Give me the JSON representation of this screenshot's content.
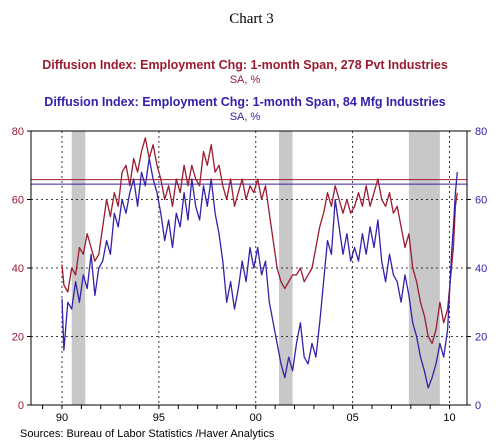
{
  "chart_title": "Chart 3",
  "source": "Sources:  Bureau of Labor Statistics /Haver Analytics",
  "chart_data": {
    "type": "line",
    "series": [
      {
        "name": "Diffusion Index: Employment Chg: 1-month Span, 278 Pvt Industries",
        "subtitle": "SA, %",
        "color": "#9b1b30",
        "reference_level": 65.8,
        "points": [
          [
            1990.0,
            41
          ],
          [
            1990.1,
            35
          ],
          [
            1990.3,
            33
          ],
          [
            1990.5,
            40
          ],
          [
            1990.7,
            38
          ],
          [
            1990.9,
            46
          ],
          [
            1991.1,
            44
          ],
          [
            1991.3,
            50
          ],
          [
            1991.5,
            46
          ],
          [
            1991.7,
            42
          ],
          [
            1991.9,
            44
          ],
          [
            1992.1,
            52
          ],
          [
            1992.3,
            60
          ],
          [
            1992.5,
            55
          ],
          [
            1992.7,
            62
          ],
          [
            1992.9,
            58
          ],
          [
            1993.1,
            68
          ],
          [
            1993.3,
            70
          ],
          [
            1993.5,
            64
          ],
          [
            1993.7,
            72
          ],
          [
            1993.9,
            68
          ],
          [
            1994.1,
            74
          ],
          [
            1994.3,
            78
          ],
          [
            1994.5,
            72
          ],
          [
            1994.7,
            76
          ],
          [
            1994.9,
            70
          ],
          [
            1995.1,
            66
          ],
          [
            1995.3,
            60
          ],
          [
            1995.5,
            64
          ],
          [
            1995.7,
            58
          ],
          [
            1995.9,
            66
          ],
          [
            1996.1,
            62
          ],
          [
            1996.3,
            70
          ],
          [
            1996.5,
            64
          ],
          [
            1996.7,
            70
          ],
          [
            1996.9,
            66
          ],
          [
            1997.1,
            64
          ],
          [
            1997.3,
            74
          ],
          [
            1997.5,
            70
          ],
          [
            1997.7,
            76
          ],
          [
            1997.9,
            68
          ],
          [
            1998.1,
            70
          ],
          [
            1998.3,
            64
          ],
          [
            1998.5,
            60
          ],
          [
            1998.7,
            66
          ],
          [
            1998.9,
            58
          ],
          [
            1999.1,
            62
          ],
          [
            1999.3,
            66
          ],
          [
            1999.5,
            60
          ],
          [
            1999.7,
            64
          ],
          [
            1999.9,
            62
          ],
          [
            2000.1,
            66
          ],
          [
            2000.3,
            60
          ],
          [
            2000.5,
            64
          ],
          [
            2000.7,
            56
          ],
          [
            2000.9,
            48
          ],
          [
            2001.1,
            40
          ],
          [
            2001.3,
            36
          ],
          [
            2001.5,
            34
          ],
          [
            2001.7,
            36
          ],
          [
            2001.9,
            38
          ],
          [
            2002.1,
            38
          ],
          [
            2002.3,
            40
          ],
          [
            2002.5,
            36
          ],
          [
            2002.7,
            38
          ],
          [
            2002.9,
            40
          ],
          [
            2003.1,
            46
          ],
          [
            2003.3,
            52
          ],
          [
            2003.5,
            56
          ],
          [
            2003.7,
            62
          ],
          [
            2003.9,
            58
          ],
          [
            2004.1,
            64
          ],
          [
            2004.3,
            60
          ],
          [
            2004.5,
            56
          ],
          [
            2004.7,
            60
          ],
          [
            2004.9,
            56
          ],
          [
            2005.1,
            58
          ],
          [
            2005.3,
            62
          ],
          [
            2005.5,
            58
          ],
          [
            2005.7,
            64
          ],
          [
            2005.9,
            58
          ],
          [
            2006.1,
            62
          ],
          [
            2006.3,
            66
          ],
          [
            2006.5,
            60
          ],
          [
            2006.7,
            58
          ],
          [
            2006.9,
            62
          ],
          [
            2007.1,
            56
          ],
          [
            2007.3,
            58
          ],
          [
            2007.5,
            52
          ],
          [
            2007.7,
            46
          ],
          [
            2007.9,
            50
          ],
          [
            2008.1,
            40
          ],
          [
            2008.3,
            36
          ],
          [
            2008.5,
            30
          ],
          [
            2008.7,
            26
          ],
          [
            2008.9,
            20
          ],
          [
            2009.1,
            18
          ],
          [
            2009.3,
            22
          ],
          [
            2009.5,
            30
          ],
          [
            2009.7,
            24
          ],
          [
            2009.9,
            28
          ],
          [
            2010.1,
            40
          ],
          [
            2010.2,
            46
          ],
          [
            2010.3,
            58
          ],
          [
            2010.4,
            62
          ]
        ]
      },
      {
        "name": "Diffusion Index: Employment Chg: 1-month Span, 84 Mfg Industries",
        "subtitle": "SA, %",
        "color": "#3322aa",
        "reference_level": 64.5,
        "points": [
          [
            1990.0,
            31
          ],
          [
            1990.1,
            16
          ],
          [
            1990.3,
            30
          ],
          [
            1990.5,
            28
          ],
          [
            1990.7,
            36
          ],
          [
            1990.9,
            30
          ],
          [
            1991.1,
            38
          ],
          [
            1991.3,
            34
          ],
          [
            1991.5,
            44
          ],
          [
            1991.7,
            32
          ],
          [
            1991.9,
            40
          ],
          [
            1992.1,
            42
          ],
          [
            1992.3,
            48
          ],
          [
            1992.5,
            44
          ],
          [
            1992.7,
            56
          ],
          [
            1992.9,
            52
          ],
          [
            1993.1,
            60
          ],
          [
            1993.3,
            56
          ],
          [
            1993.5,
            62
          ],
          [
            1993.7,
            66
          ],
          [
            1993.9,
            58
          ],
          [
            1994.1,
            68
          ],
          [
            1994.3,
            64
          ],
          [
            1994.5,
            72
          ],
          [
            1994.7,
            66
          ],
          [
            1994.9,
            62
          ],
          [
            1995.1,
            56
          ],
          [
            1995.3,
            48
          ],
          [
            1995.5,
            54
          ],
          [
            1995.7,
            46
          ],
          [
            1995.9,
            56
          ],
          [
            1996.1,
            52
          ],
          [
            1996.3,
            62
          ],
          [
            1996.5,
            54
          ],
          [
            1996.7,
            66
          ],
          [
            1996.9,
            58
          ],
          [
            1997.1,
            54
          ],
          [
            1997.3,
            64
          ],
          [
            1997.5,
            58
          ],
          [
            1997.7,
            66
          ],
          [
            1997.9,
            56
          ],
          [
            1998.1,
            50
          ],
          [
            1998.3,
            42
          ],
          [
            1998.5,
            30
          ],
          [
            1998.7,
            36
          ],
          [
            1998.9,
            28
          ],
          [
            1999.1,
            34
          ],
          [
            1999.3,
            42
          ],
          [
            1999.5,
            36
          ],
          [
            1999.7,
            46
          ],
          [
            1999.9,
            40
          ],
          [
            2000.1,
            46
          ],
          [
            2000.3,
            38
          ],
          [
            2000.5,
            42
          ],
          [
            2000.7,
            30
          ],
          [
            2000.9,
            24
          ],
          [
            2001.1,
            18
          ],
          [
            2001.3,
            12
          ],
          [
            2001.5,
            8
          ],
          [
            2001.7,
            14
          ],
          [
            2001.9,
            10
          ],
          [
            2002.1,
            18
          ],
          [
            2002.3,
            24
          ],
          [
            2002.5,
            14
          ],
          [
            2002.7,
            12
          ],
          [
            2002.9,
            18
          ],
          [
            2003.1,
            14
          ],
          [
            2003.3,
            24
          ],
          [
            2003.5,
            36
          ],
          [
            2003.7,
            48
          ],
          [
            2003.9,
            44
          ],
          [
            2004.1,
            60
          ],
          [
            2004.3,
            52
          ],
          [
            2004.5,
            44
          ],
          [
            2004.7,
            50
          ],
          [
            2004.9,
            42
          ],
          [
            2005.1,
            46
          ],
          [
            2005.3,
            42
          ],
          [
            2005.5,
            50
          ],
          [
            2005.7,
            44
          ],
          [
            2005.9,
            52
          ],
          [
            2006.1,
            46
          ],
          [
            2006.3,
            54
          ],
          [
            2006.5,
            42
          ],
          [
            2006.7,
            36
          ],
          [
            2006.9,
            44
          ],
          [
            2007.1,
            38
          ],
          [
            2007.3,
            36
          ],
          [
            2007.5,
            30
          ],
          [
            2007.7,
            38
          ],
          [
            2007.9,
            32
          ],
          [
            2008.1,
            24
          ],
          [
            2008.3,
            20
          ],
          [
            2008.5,
            14
          ],
          [
            2008.7,
            10
          ],
          [
            2008.9,
            5
          ],
          [
            2009.1,
            8
          ],
          [
            2009.3,
            12
          ],
          [
            2009.5,
            18
          ],
          [
            2009.7,
            14
          ],
          [
            2009.9,
            22
          ],
          [
            2010.1,
            44
          ],
          [
            2010.2,
            52
          ],
          [
            2010.3,
            62
          ],
          [
            2010.4,
            68
          ]
        ]
      }
    ],
    "x_ticks": [
      {
        "value": 1990,
        "label": "90"
      },
      {
        "value": 1995,
        "label": "95"
      },
      {
        "value": 2000,
        "label": "00"
      },
      {
        "value": 2005,
        "label": "05"
      },
      {
        "value": 2010,
        "label": "10"
      }
    ],
    "y_ticks": [
      0,
      20,
      40,
      60,
      80
    ],
    "xlim": [
      1988.4,
      2010.9
    ],
    "ylim": [
      0,
      80
    ],
    "recessions": [
      [
        1990.5,
        1991.2
      ],
      [
        2001.2,
        2001.9
      ],
      [
        2007.9,
        2009.5
      ]
    ],
    "recession_color": "#c8c8c8",
    "grid": true,
    "dual_y_axis": true
  }
}
